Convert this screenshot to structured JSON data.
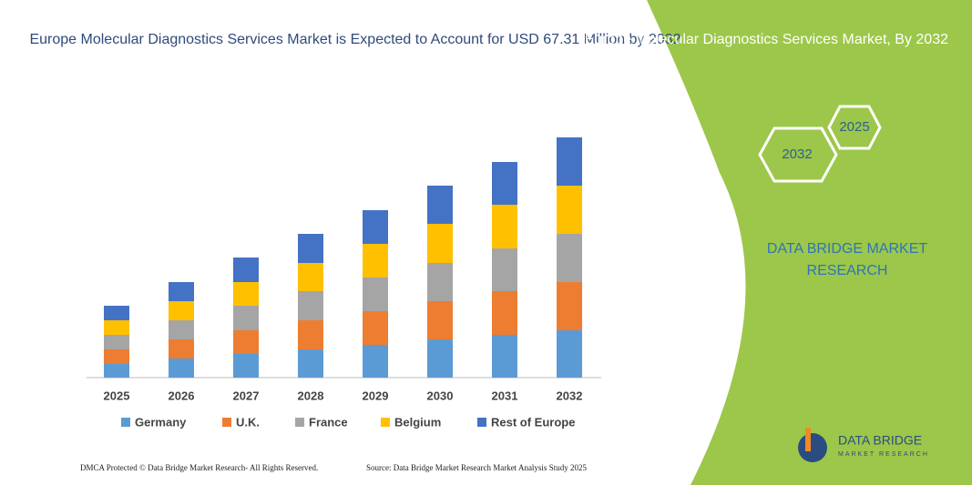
{
  "chart_data": {
    "type": "stacked-bar",
    "title": "Europe Molecular Diagnostics Services Market is Expected to Account for USD 67.31 Million by 2032",
    "categories": [
      "2025",
      "2026",
      "2027",
      "2028",
      "2029",
      "2030",
      "2031",
      "2032"
    ],
    "series": [
      {
        "name": "Germany",
        "color": "#5b9bd5",
        "values": [
          15,
          21,
          26,
          31,
          36,
          42,
          47,
          52
        ]
      },
      {
        "name": "U.K.",
        "color": "#ed7d31",
        "values": [
          16,
          21,
          26,
          32,
          37,
          42,
          48,
          53
        ]
      },
      {
        "name": "France",
        "color": "#a5a5a5",
        "values": [
          16,
          21,
          27,
          32,
          37,
          42,
          47,
          53
        ]
      },
      {
        "name": "Belgium",
        "color": "#ffc000",
        "values": [
          16,
          21,
          26,
          31,
          37,
          43,
          48,
          53
        ]
      },
      {
        "name": "Rest of Europe",
        "color": "#4472c4",
        "values": [
          16,
          21,
          27,
          32,
          37,
          42,
          47,
          53
        ]
      }
    ]
  },
  "panel": {
    "title": "Europe Molecular Diagnostics Services Market, By 2032",
    "hex_top": "2025",
    "hex_bottom": "2032",
    "brand": "DATA BRIDGE MARKET RESEARCH"
  },
  "logo": {
    "name": "DATA BRIDGE",
    "tagline": "MARKET RESEARCH"
  },
  "footer": {
    "left": "DMCA Protected © Data Bridge Market Research- All Rights Reserved.",
    "right": "Source: Data Bridge Market Research Market Analysis Study 2025"
  }
}
